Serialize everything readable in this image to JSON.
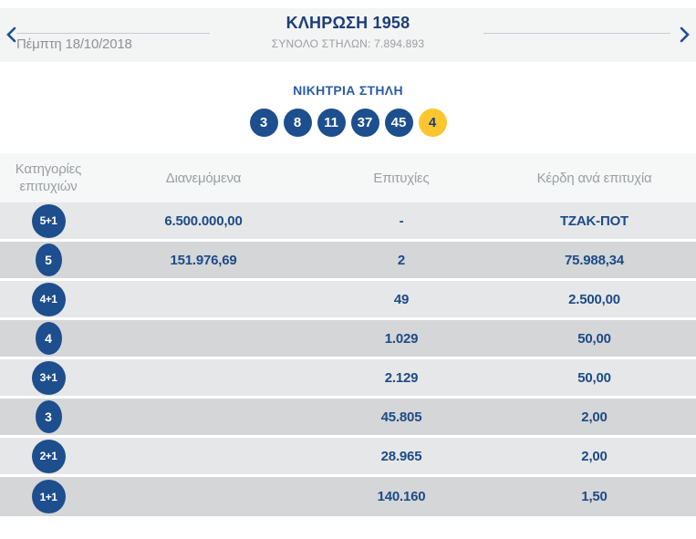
{
  "header": {
    "date": "Πέμπτη 18/10/2018",
    "title": "ΚΛΗΡΩΣΗ 1958",
    "subtitle": "ΣΥΝΟΛΟ ΣΤΗΛΩΝ: 7.894.893",
    "prev_icon": "chevron-left",
    "next_icon": "chevron-right"
  },
  "winning": {
    "heading": "ΝΙΚΗΤΡΙΑ ΣΤΗΛΗ",
    "numbers": [
      "3",
      "8",
      "11",
      "37",
      "45"
    ],
    "bonus": "4"
  },
  "table": {
    "columns": [
      "Κατηγορίες επιτυχιών",
      "Διανεμόμενα",
      "Επιτυχίες",
      "Κέρδη ανά επιτυχία"
    ],
    "rows": [
      {
        "category": "5+1",
        "distributed": "6.500.000,00",
        "winners": "-",
        "prize": "ΤΖΑΚ-ΠΟΤ"
      },
      {
        "category": "5",
        "distributed": "151.976,69",
        "winners": "2",
        "prize": "75.988,34"
      },
      {
        "category": "4+1",
        "distributed": "",
        "winners": "49",
        "prize": "2.500,00"
      },
      {
        "category": "4",
        "distributed": "",
        "winners": "1.029",
        "prize": "50,00"
      },
      {
        "category": "3+1",
        "distributed": "",
        "winners": "2.129",
        "prize": "50,00"
      },
      {
        "category": "3",
        "distributed": "",
        "winners": "45.805",
        "prize": "2,00"
      },
      {
        "category": "2+1",
        "distributed": "",
        "winners": "28.965",
        "prize": "2,00"
      },
      {
        "category": "1+1",
        "distributed": "",
        "winners": "140.160",
        "prize": "1,50"
      }
    ]
  },
  "colors": {
    "brand_navy": "#1d4e8d",
    "title_navy": "#1d3e79",
    "value_navy": "#1d4b87",
    "heading_blue": "#2b5ca6",
    "bonus_yellow": "#fdc52e",
    "topbar_bg": "#f3f4f4",
    "thead_bg": "#f6f7f7",
    "row_light": "#e6e7e8",
    "row_dark": "#d5d6d8",
    "muted_gray": "#9aa0a4"
  }
}
